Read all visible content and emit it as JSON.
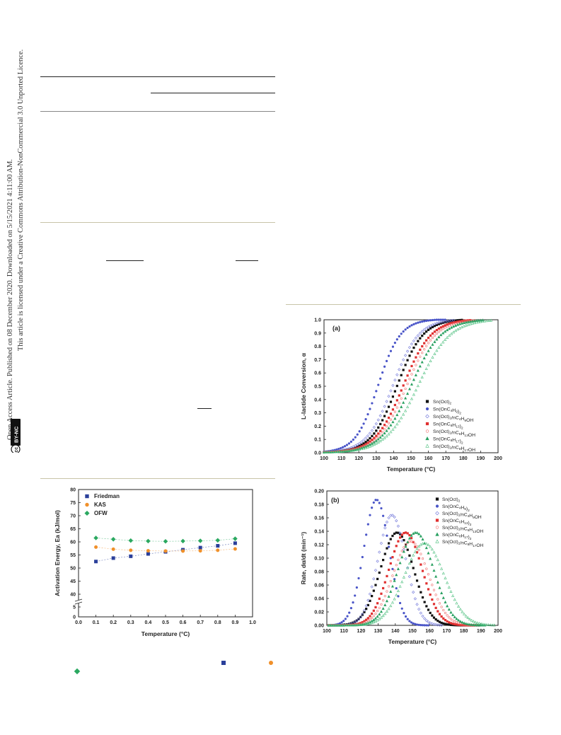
{
  "side_notice": {
    "line1": "Open Access Article. Published on 08 December 2020. Downloaded on 5/15/2021 4:11:00 AM.",
    "line2": "This article is licensed under a Creative Commons Attribution-NonCommercial 3.0 Unported Licence.",
    "badge_cc": "cc",
    "badge_byNc": "BY-NC"
  },
  "colors": {
    "friedman": "#2a3f9a",
    "kas": "#f0902a",
    "ofw": "#2aa860",
    "sn_oct": "#111111",
    "butyl": "#4a55c8",
    "hexyl": "#e03030",
    "octyl": "#28a060"
  },
  "chart_data": [
    {
      "id": "activation-energy",
      "type": "scatter",
      "xlabel": "Temperature (°C)",
      "ylabel": "Activation Energy, Ea (kJ/mol)",
      "xlim": [
        0.0,
        1.0
      ],
      "xticks": [
        "0.0",
        "0.1",
        "0.2",
        "0.3",
        "0.4",
        "0.5",
        "0.6",
        "0.7",
        "0.8",
        "0.9",
        "1.0"
      ],
      "yticks": [
        "0",
        "5",
        "40",
        "45",
        "50",
        "55",
        "60",
        "65",
        "70",
        "75",
        "80"
      ],
      "axis_break": true,
      "legend_position": "top-left",
      "series": [
        {
          "name": "Friedman",
          "marker": "square",
          "color": "#2a3f9a",
          "x": [
            0.1,
            0.2,
            0.3,
            0.4,
            0.5,
            0.6,
            0.7,
            0.8,
            0.9
          ],
          "y": [
            52.5,
            53.8,
            54.5,
            55.4,
            56.2,
            57.0,
            57.8,
            58.5,
            59.5
          ]
        },
        {
          "name": "KAS",
          "marker": "circle",
          "color": "#f0902a",
          "x": [
            0.1,
            0.2,
            0.3,
            0.4,
            0.5,
            0.6,
            0.7,
            0.8,
            0.9
          ],
          "y": [
            58.0,
            57.2,
            56.8,
            56.6,
            56.5,
            56.5,
            56.6,
            56.8,
            57.3
          ]
        },
        {
          "name": "OFW",
          "marker": "diamond",
          "color": "#2aa860",
          "x": [
            0.1,
            0.2,
            0.3,
            0.4,
            0.5,
            0.6,
            0.7,
            0.8,
            0.9
          ],
          "y": [
            61.5,
            61.0,
            60.5,
            60.3,
            60.2,
            60.3,
            60.4,
            60.6,
            61.2
          ]
        }
      ]
    },
    {
      "id": "conversion",
      "type": "scatter",
      "panel_label": "(a)",
      "xlabel": "Temperature (°C)",
      "ylabel": "L-lactide Conversion, α",
      "xlim": [
        100,
        200
      ],
      "ylim": [
        0.0,
        1.0
      ],
      "xticks": [
        "100",
        "110",
        "120",
        "130",
        "140",
        "150",
        "160",
        "170",
        "180",
        "190",
        "200"
      ],
      "yticks": [
        "0.0",
        "0.1",
        "0.2",
        "0.3",
        "0.4",
        "0.5",
        "0.6",
        "0.7",
        "0.8",
        "0.9",
        "1.0"
      ],
      "legend_position": "right",
      "series": [
        {
          "name": "Sn(Oct)2",
          "marker": "square",
          "color": "#111111",
          "midpoint": 142,
          "width": 7.4,
          "end": 180
        },
        {
          "name": "Sn(OnC4H9)2",
          "marker": "circle",
          "color": "#4a55c8",
          "midpoint": 131,
          "width": 6.4,
          "end": 170
        },
        {
          "name": "Sn(Oct)2/nC4H9OH",
          "marker": "diamond",
          "color": "#6a70d8",
          "midpoint": 139.5,
          "width": 7.4,
          "end": 175
        },
        {
          "name": "Sn(OnC6H13)2",
          "marker": "square",
          "color": "#e03030",
          "midpoint": 145.5,
          "width": 8.0,
          "end": 185
        },
        {
          "name": "Sn(Oct)2/nC6H13OH",
          "marker": "circle",
          "color": "#f07070",
          "midpoint": 147.5,
          "width": 8.2,
          "end": 187
        },
        {
          "name": "Sn(OnC8H17)2",
          "marker": "triangle",
          "color": "#28a060",
          "midpoint": 150,
          "width": 8.6,
          "end": 192
        },
        {
          "name": "Sn(Oct)2/nC8H17OH",
          "marker": "triangle",
          "color": "#50c080",
          "midpoint": 154,
          "width": 9.2,
          "end": 197
        }
      ]
    },
    {
      "id": "rate",
      "type": "scatter",
      "panel_label": "(b)",
      "xlabel": "Temperature (°C)",
      "ylabel": "Rate, dα/dt (min⁻¹)",
      "xlim": [
        100,
        200
      ],
      "ylim": [
        0.0,
        0.2
      ],
      "xticks": [
        "100",
        "110",
        "120",
        "130",
        "140",
        "150",
        "160",
        "170",
        "180",
        "190",
        "200"
      ],
      "yticks": [
        "0.00",
        "0.02",
        "0.04",
        "0.06",
        "0.08",
        "0.10",
        "0.12",
        "0.14",
        "0.16",
        "0.18",
        "0.20"
      ],
      "legend_position": "top-right",
      "series": [
        {
          "name": "Sn(Oct)2",
          "marker": "square",
          "color": "#111111",
          "peak_x": 141,
          "peak_y": 0.138,
          "width": 15,
          "start": 100,
          "end": 190
        },
        {
          "name": "Sn(OnC4H9)2",
          "marker": "circle",
          "color": "#4a55c8",
          "peak_x": 129,
          "peak_y": 0.187,
          "width": 11.5,
          "start": 100,
          "end": 160
        },
        {
          "name": "Sn(Oct)2/nC4H9OH",
          "marker": "diamond",
          "color": "#6a70d8",
          "peak_x": 138,
          "peak_y": 0.164,
          "width": 12.5,
          "start": 100,
          "end": 168
        },
        {
          "name": "Sn(OnC6H13)2",
          "marker": "square",
          "color": "#e03030",
          "peak_x": 146,
          "peak_y": 0.138,
          "width": 15,
          "start": 100,
          "end": 186
        },
        {
          "name": "Sn(Oct)2/nC6H13OH",
          "marker": "circle",
          "color": "#f07070",
          "peak_x": 149,
          "peak_y": 0.125,
          "width": 16,
          "start": 100,
          "end": 188
        },
        {
          "name": "Sn(OnC8H17)2",
          "marker": "triangle",
          "color": "#28a060",
          "peak_x": 152,
          "peak_y": 0.138,
          "width": 16,
          "start": 100,
          "end": 193
        },
        {
          "name": "Sn(Oct)2/nC8H17OH",
          "marker": "triangle",
          "color": "#50c080",
          "peak_x": 157,
          "peak_y": 0.122,
          "width": 18,
          "start": 100,
          "end": 198
        }
      ]
    }
  ]
}
